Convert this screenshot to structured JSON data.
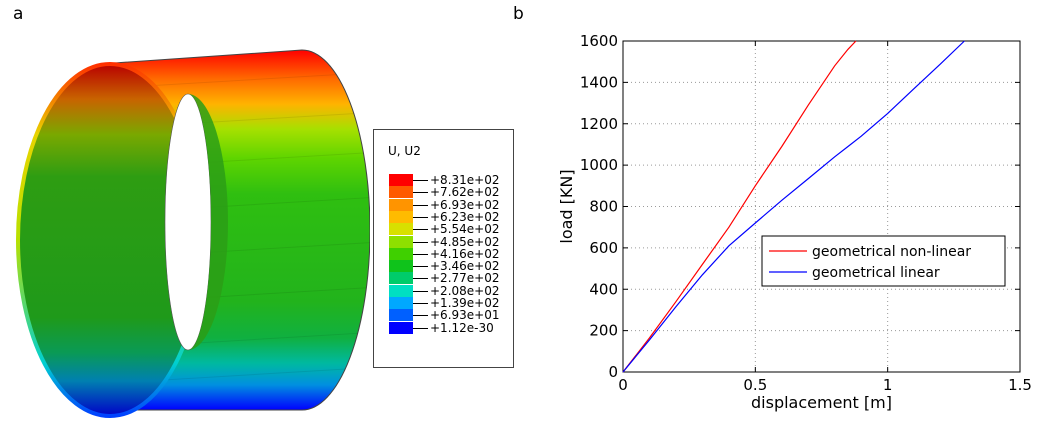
{
  "panel_a": {
    "letter": "a",
    "legend": {
      "title": "U, U2",
      "labels": [
        "+8.31e+02",
        "+7.62e+02",
        "+6.93e+02",
        "+6.23e+02",
        "+5.54e+02",
        "+4.85e+02",
        "+4.16e+02",
        "+3.46e+02",
        "+2.77e+02",
        "+2.08e+02",
        "+1.39e+02",
        "+6.93e+01",
        "+1.12e-30"
      ],
      "colors": [
        "#ff0000",
        "#ff5a00",
        "#ff9400",
        "#ffbb00",
        "#d8e000",
        "#8ee000",
        "#3fd000",
        "#0fc31b",
        "#00cc6a",
        "#00dfc2",
        "#00a8ff",
        "#0060ff",
        "#0000ff"
      ]
    },
    "colors": {
      "edge": "#444444"
    }
  },
  "panel_b": {
    "letter": "b"
  },
  "chart_data": {
    "type": "line",
    "xlabel": "displacement [m]",
    "ylabel": "load [KN]",
    "xlim": [
      0,
      1.5
    ],
    "ylim": [
      0,
      1600
    ],
    "xticks": [
      0,
      0.5,
      1,
      1.5
    ],
    "xtick_labels": [
      "0",
      "0.5",
      "1",
      "1.5"
    ],
    "yticks": [
      0,
      200,
      400,
      600,
      800,
      1000,
      1200,
      1400,
      1600
    ],
    "grid": true,
    "legend_position": "center-right",
    "series": [
      {
        "name": "geometrical non-linear",
        "color": "#ff0000",
        "x": [
          0,
          0.1,
          0.2,
          0.3,
          0.4,
          0.5,
          0.6,
          0.7,
          0.8,
          0.85,
          0.88
        ],
        "y": [
          0,
          165,
          340,
          520,
          700,
          900,
          1090,
          1290,
          1480,
          1560,
          1600
        ]
      },
      {
        "name": "geometrical linear",
        "color": "#0000ff",
        "x": [
          0,
          0.1,
          0.2,
          0.3,
          0.4,
          0.5,
          0.6,
          0.7,
          0.8,
          0.85,
          0.9,
          1.0,
          1.1,
          1.2,
          1.29
        ],
        "y": [
          0,
          155,
          315,
          470,
          610,
          720,
          830,
          935,
          1040,
          1090,
          1140,
          1250,
          1370,
          1490,
          1600
        ]
      }
    ]
  }
}
